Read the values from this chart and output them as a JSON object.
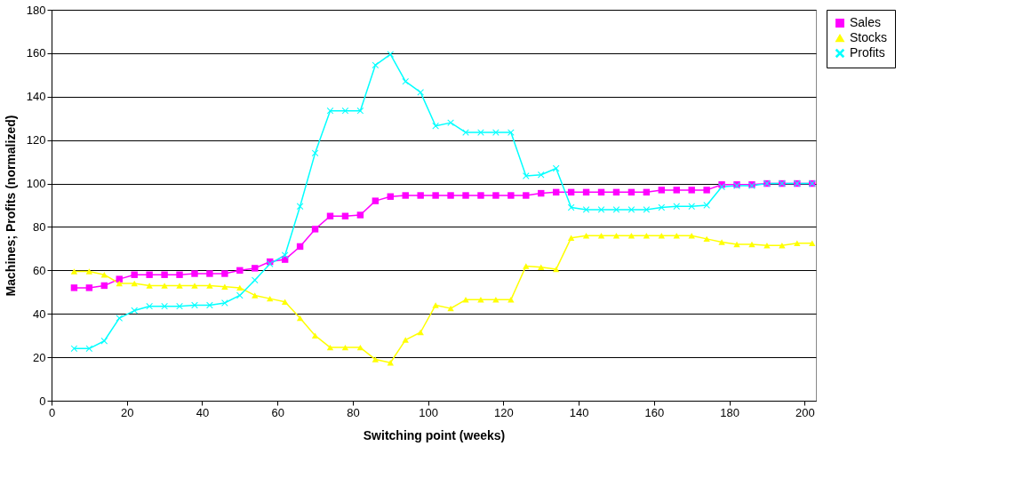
{
  "chart_data": {
    "type": "line",
    "xlabel": "Switching point (weeks)",
    "ylabel": "Machines; Profits (normalized)",
    "x": [
      6,
      10,
      14,
      18,
      22,
      26,
      30,
      34,
      38,
      42,
      46,
      50,
      54,
      58,
      62,
      66,
      70,
      74,
      78,
      82,
      86,
      90,
      94,
      98,
      102,
      106,
      110,
      114,
      118,
      122,
      126,
      130,
      134,
      138,
      142,
      146,
      150,
      154,
      158,
      162,
      166,
      170,
      174,
      178,
      182,
      186,
      190,
      194,
      198,
      202
    ],
    "series": [
      {
        "name": "Sales",
        "color": "#ff00ff",
        "marker": "square",
        "values": [
          52,
          52,
          53,
          56,
          58,
          58,
          58,
          58,
          58.5,
          58.5,
          58.5,
          60,
          61,
          64,
          65,
          71,
          79,
          85,
          85,
          85.5,
          92,
          94,
          94.5,
          94.5,
          94.5,
          94.5,
          94.5,
          94.5,
          94.5,
          94.5,
          94.5,
          95.5,
          96,
          96,
          96,
          96,
          96,
          96,
          96,
          97,
          97,
          97,
          97,
          99.5,
          99.5,
          99.5,
          100,
          100,
          100,
          100
        ]
      },
      {
        "name": "Stocks",
        "color": "#ffff00",
        "marker": "triangle",
        "values": [
          59.5,
          59.5,
          58,
          54,
          54,
          53,
          53,
          53,
          53,
          53,
          52.5,
          52,
          48.5,
          47,
          45.5,
          38,
          30,
          24.5,
          24.5,
          24.5,
          19,
          17.5,
          28,
          31.5,
          44,
          42.5,
          46.5,
          46.5,
          46.5,
          46.5,
          62,
          61.5,
          60.5,
          75,
          76,
          76,
          76,
          76,
          76,
          76,
          76,
          76,
          74.5,
          73,
          72,
          72,
          71.5,
          71.5,
          72.5,
          72.5
        ]
      },
      {
        "name": "Profits",
        "color": "#00ffff",
        "marker": "cross",
        "values": [
          24,
          24,
          27.5,
          38,
          41.5,
          43.5,
          43.5,
          43.5,
          44,
          44,
          45,
          48.5,
          55.5,
          63,
          67,
          89.5,
          114,
          133.5,
          133.5,
          133.5,
          154.5,
          159.5,
          147,
          142,
          126.5,
          128,
          123.5,
          123.5,
          123.5,
          123.5,
          103.5,
          104,
          107,
          89,
          88,
          88,
          88,
          88,
          88,
          89,
          89.5,
          89.5,
          90,
          98.5,
          99,
          99,
          100,
          100,
          100,
          100
        ]
      }
    ],
    "xlim": [
      0,
      203
    ],
    "xticks": [
      0,
      20,
      40,
      60,
      80,
      100,
      120,
      140,
      160,
      180,
      200
    ],
    "ylim": [
      0,
      180
    ],
    "yticks": [
      0,
      20,
      40,
      60,
      80,
      100,
      120,
      140,
      160,
      180
    ],
    "grid": "y",
    "legend": "right",
    "line_style": "solid"
  }
}
